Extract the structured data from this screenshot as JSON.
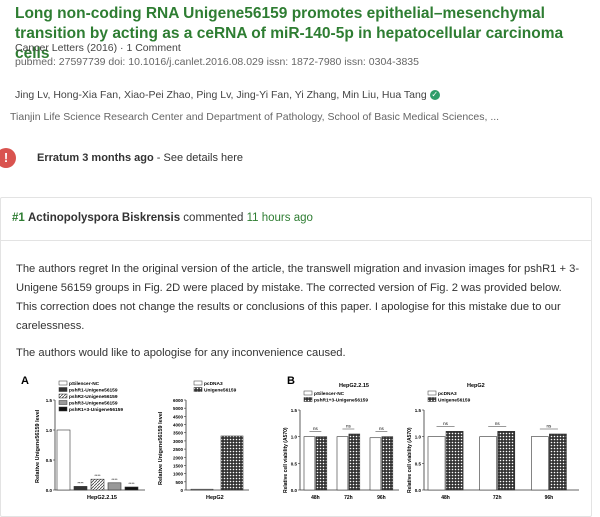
{
  "article": {
    "title": "Long non-coding RNA Unigene56159 promotes epithelial–mesenchymal transition by acting as a ceRNA of miR-140-5p in hepatocellular carcinoma cells",
    "journal_line": "Cancer Letters (2016) · 1 Comment",
    "ids_line": "pubmed: 27597739  doi: 10.1016/j.canlet.2016.08.029  issn: 1872-7980  issn: 0304-3835",
    "authors": "Jing Lv, Hong-Xia Fan, Xiao-Pei Zhao, Ping Lv, Jing-Yi Fan, Yi Zhang, Min Liu, Hua Tang",
    "affiliation": "Tianjin Life Science Research Center and Department of Pathology, School of Basic Medical Sciences, ..."
  },
  "erratum": {
    "label": "Erratum 3 months ago",
    "separator": " - ",
    "link": "See details here"
  },
  "comment": {
    "number": "#1",
    "author": "Actinopolyspora Biskrensis",
    "action": " commented ",
    "time": "11 hours ago",
    "paragraph1": "The authors regret In the original version of the article, the transwell migration and invasion images for pshR1 + 3-Unigene 56159 groups in Fig. 2D were placed by mistake. The corrected version of Fig. 2 was provided below. This correction does not change the results or conclusions of this paper. I apologise for this mistake due to our carelessness.",
    "paragraph2": "The authors would like to apologise for any inconvenience caused."
  },
  "figure": {
    "panelA_label": "A",
    "panelB_label": "B",
    "a1_ylabel": "Relative Unigene56159 level",
    "a1_xlabel": "HepG2.2.15",
    "a1_legend": [
      "pSilencer-NC",
      "pshR1-Unigene56159",
      "pshR2-Unigene56159",
      "pshR3-Unigene56159",
      "pshR1+3-Unigene56159"
    ],
    "a1_ticks": [
      "0.0",
      "0.5",
      "1.0",
      "1.5"
    ],
    "a1_values": [
      1.0,
      0.06,
      0.18,
      0.12,
      0.05
    ],
    "a1_sig": [
      "****",
      "****",
      "****",
      "****"
    ],
    "a2_ylabel": "Relative Unigene56159 level",
    "a2_xlabel": "HepG2",
    "a2_legend": [
      "pcDNA3",
      "Unigene56159"
    ],
    "a2_ticks": [
      "0",
      "500",
      "1000",
      "1500",
      "2000",
      "2500",
      "3000",
      "3500",
      "4000",
      "4500",
      "5000",
      "6000"
    ],
    "a2_values": [
      1,
      3600
    ],
    "b1_title": "HepG2.2.15",
    "b1_legend": [
      "pSilencer-NC",
      "pshR1+3-Unigene56159"
    ],
    "b1_ylabel": "Relative cell viability (A570)",
    "b1_ticks": [
      "0.0",
      "0.5",
      "1.0",
      "1.5"
    ],
    "b1_x": [
      "48h",
      "72h",
      "96h"
    ],
    "b1_sig": [
      "ns",
      "ns",
      "ns"
    ],
    "b2_title": "HepG2",
    "b2_legend": [
      "pcDNA3",
      "Unigene56159"
    ],
    "b2_ylabel": "Relative cell viability (A570)",
    "b2_ticks": [
      "0.0",
      "0.5",
      "1.0",
      "1.5"
    ],
    "b2_x": [
      "48h",
      "72h",
      "96h"
    ],
    "b2_sig": [
      "ns",
      "ns",
      "ns"
    ]
  },
  "colors": {
    "accent": "#2e7d32",
    "alert": "#d9534f",
    "verified": "#2e9d6a"
  }
}
